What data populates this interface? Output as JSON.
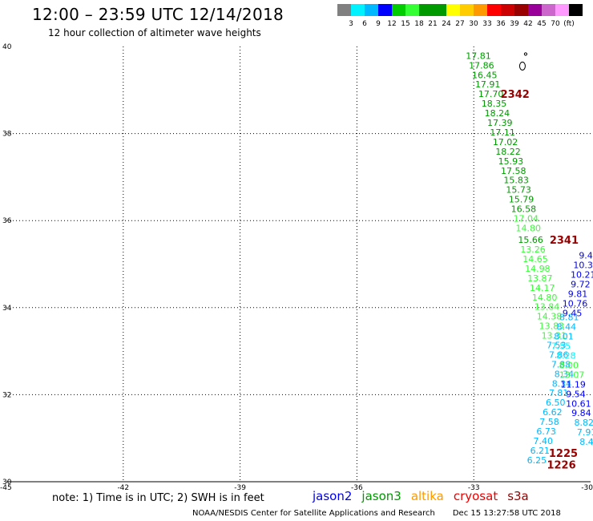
{
  "header": {
    "title": "12:00 – 23:59 UTC 12/14/2018",
    "subtitle": "12 hour collection of altimeter wave heights"
  },
  "legend": {
    "colors": [
      "#808080",
      "#00f2ff",
      "#00b8ff",
      "#0000ff",
      "#00cc00",
      "#33ff33",
      "#009900",
      "#009900",
      "#ffff00",
      "#ffcc00",
      "#ff9900",
      "#ff0000",
      "#cc0000",
      "#990000",
      "#990099",
      "#cc66cc",
      "#ff99ff",
      "#000000"
    ],
    "labels": [
      "3",
      "6",
      "9",
      "12",
      "15",
      "18",
      "21",
      "24",
      "27",
      "30",
      "33",
      "36",
      "39",
      "42",
      "45",
      "70",
      "(ft)"
    ]
  },
  "chart_data": {
    "type": "scatter",
    "xlim": [
      -45,
      -30
    ],
    "ylim": [
      30,
      40
    ],
    "x_ticks": [
      "-45",
      "-42",
      "-39",
      "-36",
      "-33",
      "-30"
    ],
    "y_ticks": [
      "30",
      "32",
      "34",
      "36",
      "38",
      "40"
    ],
    "grid": true,
    "points": [
      {
        "x": -32.88,
        "y": 39.79,
        "label": "17.81",
        "color": "#009900"
      },
      {
        "x": -32.8,
        "y": 39.57,
        "label": "17.86",
        "color": "#009900"
      },
      {
        "x": -32.72,
        "y": 39.35,
        "label": "16.45",
        "color": "#009900"
      },
      {
        "x": -32.64,
        "y": 39.13,
        "label": "17.91",
        "color": "#009900"
      },
      {
        "x": -32.56,
        "y": 38.91,
        "label": "17.70",
        "color": "#009900"
      },
      {
        "x": -32.48,
        "y": 38.69,
        "label": "18.35",
        "color": "#009900"
      },
      {
        "x": -32.4,
        "y": 38.47,
        "label": "18.24",
        "color": "#009900"
      },
      {
        "x": -32.33,
        "y": 38.25,
        "label": "17.39",
        "color": "#009900"
      },
      {
        "x": -32.26,
        "y": 38.03,
        "label": "17.11",
        "color": "#009900"
      },
      {
        "x": -32.19,
        "y": 37.81,
        "label": "17.02",
        "color": "#009900"
      },
      {
        "x": -32.12,
        "y": 37.59,
        "label": "18.22",
        "color": "#009900"
      },
      {
        "x": -32.05,
        "y": 37.37,
        "label": "15.93",
        "color": "#009900"
      },
      {
        "x": -31.98,
        "y": 37.15,
        "label": "17.58",
        "color": "#009900"
      },
      {
        "x": -31.91,
        "y": 36.93,
        "label": "15.83",
        "color": "#009900"
      },
      {
        "x": -31.85,
        "y": 36.71,
        "label": "15.73",
        "color": "#009900"
      },
      {
        "x": -31.78,
        "y": 36.49,
        "label": "15.79",
        "color": "#009900"
      },
      {
        "x": -31.72,
        "y": 36.27,
        "label": "16.58",
        "color": "#009900"
      },
      {
        "x": -31.66,
        "y": 36.05,
        "label": "17.04",
        "color": "#33ff33"
      },
      {
        "x": -31.6,
        "y": 35.83,
        "label": "14.80",
        "color": "#33ff33"
      },
      {
        "x": -31.54,
        "y": 35.56,
        "label": "15.66",
        "color": "#009900"
      },
      {
        "x": -31.48,
        "y": 35.34,
        "label": "13.26",
        "color": "#33ff33"
      },
      {
        "x": -31.42,
        "y": 35.12,
        "label": "14.65",
        "color": "#33ff33"
      },
      {
        "x": -31.36,
        "y": 34.9,
        "label": "14.98",
        "color": "#33ff33"
      },
      {
        "x": -31.3,
        "y": 34.68,
        "label": "13.87",
        "color": "#33ff33"
      },
      {
        "x": -31.24,
        "y": 34.46,
        "label": "14.17",
        "color": "#33ff33"
      },
      {
        "x": -31.18,
        "y": 34.24,
        "label": "14.80",
        "color": "#33ff33"
      },
      {
        "x": -31.12,
        "y": 34.02,
        "label": "13.84",
        "color": "#33ff33"
      },
      {
        "x": -31.06,
        "y": 33.8,
        "label": "14.38",
        "color": "#33ff33"
      },
      {
        "x": -31.0,
        "y": 33.58,
        "label": "13.83",
        "color": "#33ff33"
      },
      {
        "x": -30.94,
        "y": 33.36,
        "label": "13.31",
        "color": "#33ff33"
      },
      {
        "x": -30.88,
        "y": 33.14,
        "label": "7.53",
        "color": "#00b8ff"
      },
      {
        "x": -30.82,
        "y": 32.92,
        "label": "7.86",
        "color": "#00b8ff"
      },
      {
        "x": -30.76,
        "y": 32.7,
        "label": "7.88",
        "color": "#00b8ff"
      },
      {
        "x": -30.68,
        "y": 32.48,
        "label": "8.34",
        "color": "#00b8ff"
      },
      {
        "x": -30.74,
        "y": 32.26,
        "label": "8.34",
        "color": "#00b8ff"
      },
      {
        "x": -30.82,
        "y": 32.04,
        "label": "7.81",
        "color": "#00b8ff"
      },
      {
        "x": -30.9,
        "y": 31.82,
        "label": "6.50",
        "color": "#00b8ff"
      },
      {
        "x": -30.98,
        "y": 31.6,
        "label": "6.62",
        "color": "#00b8ff"
      },
      {
        "x": -31.06,
        "y": 31.38,
        "label": "7.58",
        "color": "#00b8ff"
      },
      {
        "x": -31.14,
        "y": 31.16,
        "label": "6.73",
        "color": "#00b8ff"
      },
      {
        "x": -31.22,
        "y": 30.94,
        "label": "7.40",
        "color": "#00b8ff"
      },
      {
        "x": -31.3,
        "y": 30.72,
        "label": "6.21",
        "color": "#00b8ff"
      },
      {
        "x": -31.38,
        "y": 30.5,
        "label": "6.25",
        "color": "#00b8ff"
      },
      {
        "x": -30.55,
        "y": 33.78,
        "label": "8.81",
        "color": "#00b8ff"
      },
      {
        "x": -30.62,
        "y": 33.56,
        "label": "8.44",
        "color": "#00b8ff"
      },
      {
        "x": -30.69,
        "y": 33.34,
        "label": "8.01",
        "color": "#00b8ff"
      },
      {
        "x": -30.76,
        "y": 33.12,
        "label": "7.55",
        "color": "#00f2ff"
      },
      {
        "x": -30.63,
        "y": 32.9,
        "label": "8.28",
        "color": "#00f2ff"
      },
      {
        "x": -30.56,
        "y": 32.68,
        "label": "8.00",
        "color": "#33ff33"
      },
      {
        "x": -30.48,
        "y": 32.46,
        "label": "13.07",
        "color": "#33ff33"
      },
      {
        "x": -30.05,
        "y": 35.2,
        "label": "9.46",
        "color": "#0000ff"
      },
      {
        "x": -30.12,
        "y": 34.98,
        "label": "10.31",
        "color": "#0000ff"
      },
      {
        "x": -30.19,
        "y": 34.76,
        "label": "10.21",
        "color": "#0000ff"
      },
      {
        "x": -30.26,
        "y": 34.54,
        "label": "9.72",
        "color": "#0000ff"
      },
      {
        "x": -30.33,
        "y": 34.32,
        "label": "9.81",
        "color": "#0000ff"
      },
      {
        "x": -30.4,
        "y": 34.1,
        "label": "10.76",
        "color": "#0000ff"
      },
      {
        "x": -30.47,
        "y": 33.88,
        "label": "9.45",
        "color": "#0000ff"
      },
      {
        "x": -30.45,
        "y": 32.24,
        "label": "11.19",
        "color": "#0000ff"
      },
      {
        "x": -30.38,
        "y": 32.02,
        "label": "9.54",
        "color": "#0000ff"
      },
      {
        "x": -30.31,
        "y": 31.8,
        "label": "10.61",
        "color": "#0000ff"
      },
      {
        "x": -30.24,
        "y": 31.58,
        "label": "9.84",
        "color": "#0000ff"
      },
      {
        "x": -30.17,
        "y": 31.36,
        "label": "8.82",
        "color": "#00b8ff"
      },
      {
        "x": -30.1,
        "y": 31.14,
        "label": "7.91",
        "color": "#00b8ff"
      },
      {
        "x": -30.03,
        "y": 30.92,
        "label": "8.44",
        "color": "#00b8ff"
      }
    ],
    "times": [
      {
        "x": -31.94,
        "y": 38.91,
        "label": "2342",
        "color": "#990000"
      },
      {
        "x": -30.68,
        "y": 35.56,
        "label": "2341",
        "color": "#990000"
      },
      {
        "x": -30.7,
        "y": 30.66,
        "label": "1225",
        "color": "#990000"
      },
      {
        "x": -30.75,
        "y": 30.4,
        "label": "1226",
        "color": "#990000"
      }
    ],
    "island": {
      "x": -31.75,
      "y": 39.55
    }
  },
  "footer": {
    "note": "note: 1) Time is in UTC; 2) SWH is in feet",
    "satellites": [
      {
        "name": "jason2",
        "color": "#0000ee"
      },
      {
        "name": "jason3",
        "color": "#009900"
      },
      {
        "name": "altika",
        "color": "#ff9900"
      },
      {
        "name": "cryosat",
        "color": "#ee0000"
      },
      {
        "name": "s3a",
        "color": "#990000"
      }
    ],
    "credit": "NOAA/NESDIS Center for Satellite Applications and Research",
    "timestamp": "Dec 15 13:27:58 UTC 2018"
  }
}
